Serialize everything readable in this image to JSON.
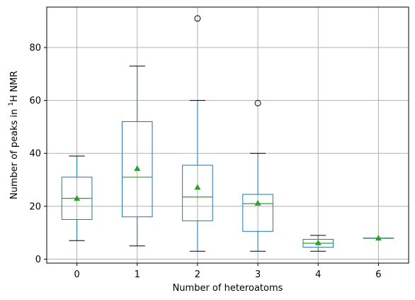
{
  "chart_data": {
    "type": "box",
    "title": "",
    "xlabel": "Number of heteroatoms",
    "ylabel": "Number of peaks in ¹H NMR",
    "ylabel_main": "Number of peaks in ",
    "ylabel_sup": "1",
    "ylabel_tail": "H NMR",
    "categories": [
      "0",
      "1",
      "2",
      "3",
      "4",
      "6"
    ],
    "ylim": [
      -1.5,
      95.3
    ],
    "yticks": [
      0,
      20,
      40,
      60,
      80
    ],
    "grid": true,
    "boxes": [
      {
        "category": "0",
        "whisker_low": 7,
        "q1": 15,
        "median": 23,
        "q3": 31,
        "whisker_high": 39,
        "mean": 23,
        "outliers": []
      },
      {
        "category": "1",
        "whisker_low": 5,
        "q1": 16,
        "median": 31,
        "q3": 52,
        "whisker_high": 73,
        "mean": 34.3,
        "outliers": []
      },
      {
        "category": "2",
        "whisker_low": 3,
        "q1": 14.5,
        "median": 23.5,
        "q3": 35.5,
        "whisker_high": 60,
        "mean": 27.2,
        "outliers": [
          91
        ]
      },
      {
        "category": "3",
        "whisker_low": 3,
        "q1": 10.5,
        "median": 21,
        "q3": 24.5,
        "whisker_high": 40,
        "mean": 21.2,
        "outliers": [
          59
        ]
      },
      {
        "category": "4",
        "whisker_low": 3,
        "q1": 4.5,
        "median": 6,
        "q3": 7.5,
        "whisker_high": 9,
        "mean": 6.2,
        "outliers": []
      },
      {
        "category": "6",
        "whisker_low": 8,
        "q1": 8,
        "median": 8,
        "q3": 8,
        "whisker_high": 8,
        "mean": 8,
        "outliers": []
      }
    ],
    "colors": {
      "box": "#1f77b4",
      "median": "#2ca02c",
      "mean": "#2ca02c",
      "whisker_cap": "#000000",
      "grid": "#b0b0b0",
      "axes": "#000000"
    }
  }
}
